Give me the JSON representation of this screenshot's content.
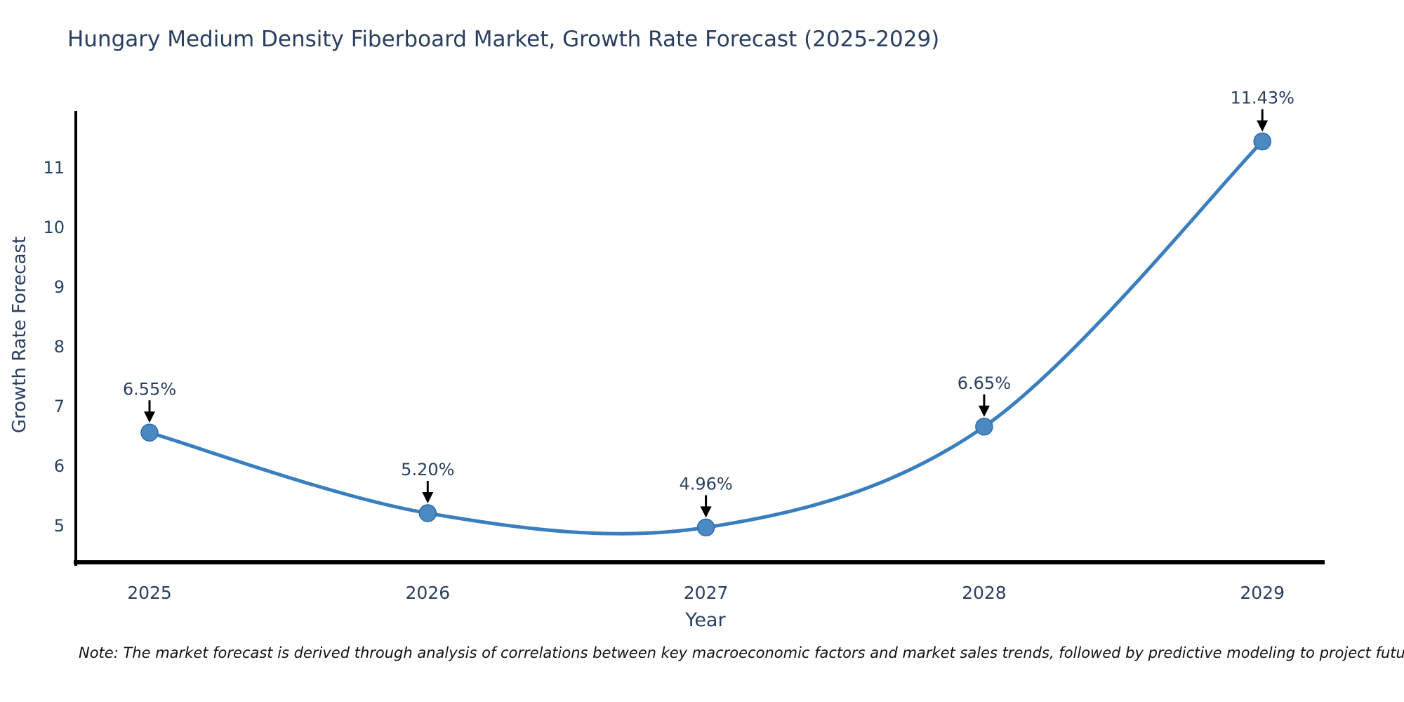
{
  "title": "Hungary Medium Density Fiberboard Market, Growth Rate Forecast (2025-2029)",
  "footnote": "Note: The market forecast is derived through analysis of correlations between key macroeconomic factors and market sales trends, followed by predictive modeling to project future sales",
  "chart_data": {
    "type": "line",
    "curve": "spline",
    "title": "Hungary Medium Density Fiberboard Market, Growth Rate Forecast (2025-2029)",
    "xlabel": "Year",
    "ylabel": "Growth Rate Forecast",
    "categories": [
      "2025",
      "2026",
      "2027",
      "2028",
      "2029"
    ],
    "series": [
      {
        "name": "Growth Rate Forecast",
        "values": [
          6.55,
          5.2,
          4.96,
          6.65,
          11.43
        ]
      }
    ],
    "point_labels": [
      "6.55%",
      "5.20%",
      "4.96%",
      "6.65%",
      "11.43%"
    ],
    "y_ticks": [
      5,
      6,
      7,
      8,
      9,
      10,
      11
    ],
    "ylim": [
      4.45,
      12.0
    ],
    "grid": false,
    "legend_position": "none",
    "colors": {
      "line": "#3a7ebf",
      "marker_fill": "#4a89c2",
      "marker_edge": "#2e6da4",
      "axis": "#000000",
      "text": "#2a3f5f",
      "annotation_arrow": "#000000",
      "footnote_text": "#111111",
      "background": "#ffffff"
    }
  }
}
